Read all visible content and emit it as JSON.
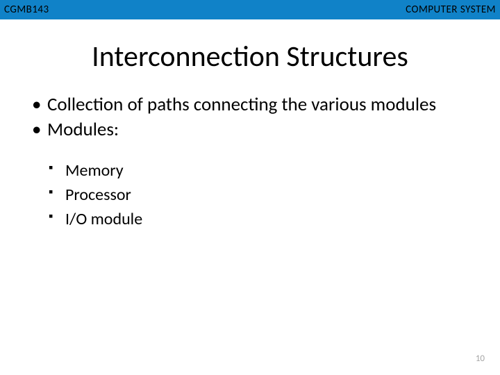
{
  "header": {
    "course_code": "CGMB143",
    "course_topic": "COMPUTER SYSTEM",
    "bar_color": "#1082c8"
  },
  "slide": {
    "title": "Interconnection Structures",
    "title_fontsize": 42,
    "title_color": "#000000"
  },
  "bullets": {
    "level1": [
      "Collection of paths connecting the various modules",
      "Modules:"
    ],
    "level1_fontsize": 27,
    "level1_marker": "•",
    "level2": [
      "Memory",
      "Processor",
      "I/O module"
    ],
    "level2_fontsize": 24,
    "level2_marker": "▪"
  },
  "page_number": "10",
  "page_number_color": "#a6a6a6",
  "background_color": "#ffffff",
  "font_family": "Calibri"
}
